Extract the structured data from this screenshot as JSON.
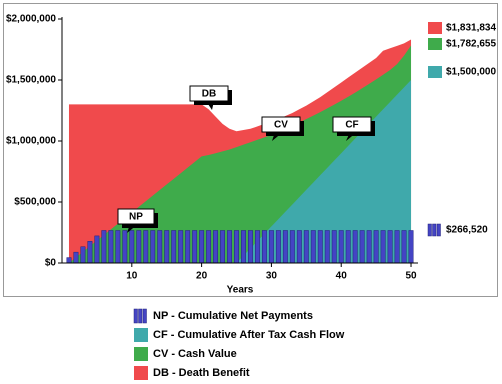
{
  "chart_data": {
    "type": "area",
    "x_label": "Years",
    "xlim": [
      0,
      51
    ],
    "xticks": [
      10,
      20,
      30,
      40,
      50
    ],
    "ylim": [
      0,
      2000000
    ],
    "yticks": [
      {
        "value": 0,
        "label": "$0"
      },
      {
        "value": 500000,
        "label": "$500,000"
      },
      {
        "value": 1000000,
        "label": "$1,000,000"
      },
      {
        "value": 1500000,
        "label": "$1,500,000"
      },
      {
        "value": 2000000,
        "label": "$2,000,000"
      }
    ],
    "annotations": [
      "DB",
      "CV",
      "CF",
      "NP"
    ],
    "x": [
      1,
      2,
      3,
      4,
      5,
      6,
      7,
      8,
      9,
      10,
      11,
      12,
      13,
      14,
      15,
      16,
      17,
      18,
      19,
      20,
      21,
      22,
      23,
      24,
      25,
      26,
      27,
      28,
      29,
      30,
      31,
      32,
      33,
      34,
      35,
      36,
      37,
      38,
      39,
      40,
      41,
      42,
      43,
      44,
      45,
      46,
      47,
      48,
      49,
      50
    ],
    "series": [
      {
        "name": "NP - Cumulative Net Payments",
        "type": "bar",
        "color": "#4444c4",
        "end_label": "$266,520",
        "values": [
          44420,
          88840,
          133260,
          177680,
          222100,
          266520,
          266520,
          266520,
          266520,
          266520,
          266520,
          266520,
          266520,
          266520,
          266520,
          266520,
          266520,
          266520,
          266520,
          266520,
          266520,
          266520,
          266520,
          266520,
          266520,
          266520,
          266520,
          266520,
          266520,
          266520,
          266520,
          266520,
          266520,
          266520,
          266520,
          266520,
          266520,
          266520,
          266520,
          266520,
          266520,
          266520,
          266520,
          266520,
          266520,
          266520,
          266520,
          266520,
          266520,
          266520
        ]
      },
      {
        "name": "CF - Cumulative After Tax Cash Flow",
        "type": "area",
        "color": "#3fa9ab",
        "end_label": "$1,500,000",
        "values": [
          0,
          0,
          0,
          0,
          0,
          0,
          0,
          0,
          0,
          0,
          0,
          0,
          0,
          0,
          0,
          0,
          0,
          0,
          0,
          0,
          0,
          0,
          0,
          0,
          0,
          60000,
          120000,
          180000,
          240000,
          300000,
          360000,
          420000,
          480000,
          540000,
          600000,
          660000,
          720000,
          780000,
          840000,
          900000,
          960000,
          1020000,
          1080000,
          1140000,
          1200000,
          1260000,
          1320000,
          1380000,
          1440000,
          1500000
        ]
      },
      {
        "name": "CV - Cash Value",
        "type": "area",
        "color": "#3fab4b",
        "end_label": "$1,782,655",
        "values": [
          0,
          46000,
          92000,
          138000,
          184000,
          230000,
          276000,
          322000,
          368000,
          414000,
          460000,
          506000,
          552000,
          598000,
          644000,
          690000,
          736000,
          782000,
          828000,
          874000,
          885000,
          900000,
          915000,
          930000,
          950000,
          970000,
          990000,
          1010000,
          1030000,
          1050000,
          1075000,
          1100000,
          1126000,
          1152000,
          1180000,
          1208000,
          1237000,
          1267000,
          1298000,
          1330000,
          1363000,
          1397000,
          1432000,
          1468000,
          1505000,
          1543000,
          1582000,
          1630000,
          1700000,
          1782655
        ]
      },
      {
        "name": "DB - Death Benefit",
        "type": "area",
        "color": "#f04a4c",
        "end_label": "$1,831,834",
        "values": [
          1300000,
          1300000,
          1300000,
          1300000,
          1300000,
          1300000,
          1300000,
          1300000,
          1300000,
          1300000,
          1300000,
          1300000,
          1300000,
          1300000,
          1300000,
          1300000,
          1300000,
          1300000,
          1300000,
          1300000,
          1260000,
          1200000,
          1140000,
          1100000,
          1080000,
          1090000,
          1100000,
          1120000,
          1140000,
          1160000,
          1180000,
          1205000,
          1230000,
          1260000,
          1290000,
          1325000,
          1360000,
          1400000,
          1440000,
          1480000,
          1520000,
          1560000,
          1600000,
          1640000,
          1680000,
          1740000,
          1760000,
          1780000,
          1800000,
          1831834
        ]
      }
    ]
  }
}
